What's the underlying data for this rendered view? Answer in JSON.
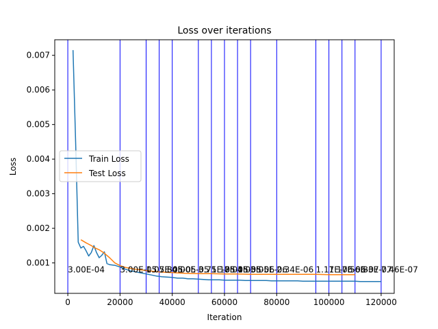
{
  "chart_data": {
    "type": "line",
    "title": "Loss over iterations",
    "xlabel": "Iteration",
    "ylabel": "Loss",
    "xlim": [
      -5000,
      125000
    ],
    "ylim": [
      0.00012,
      0.00745
    ],
    "xticks": [
      0,
      20000,
      40000,
      60000,
      80000,
      100000,
      120000
    ],
    "xtick_labels": [
      "0",
      "20000",
      "40000",
      "60000",
      "80000",
      "100000",
      "120000"
    ],
    "yticks": [
      0.001,
      0.002,
      0.003,
      0.004,
      0.005,
      0.006,
      0.007
    ],
    "ytick_labels": [
      "0.001",
      "0.002",
      "0.003",
      "0.004",
      "0.005",
      "0.006",
      "0.007"
    ],
    "grid": false,
    "legend_position": "center-left",
    "series": [
      {
        "name": "Train Loss",
        "color": "#1f77b4",
        "x": [
          2000,
          3000,
          4000,
          5000,
          6000,
          7000,
          8000,
          9000,
          10000,
          11000,
          12000,
          13000,
          14000,
          15000,
          16000,
          18000,
          20000,
          22000,
          24000,
          26000,
          28000,
          30000,
          32000,
          34000,
          36000,
          38000,
          40000,
          42000,
          44000,
          46000,
          48000,
          50000,
          52000,
          54000,
          56000,
          58000,
          60000,
          62000,
          64000,
          66000,
          68000,
          70000,
          72000,
          74000,
          76000,
          78000,
          80000,
          82000,
          84000,
          86000,
          88000,
          90000,
          92000,
          94000,
          96000,
          98000,
          100000,
          102000,
          104000,
          106000,
          108000,
          110000,
          112000,
          114000,
          116000,
          118000,
          120000
        ],
        "values": [
          0.00715,
          0.0045,
          0.0016,
          0.00143,
          0.00148,
          0.00135,
          0.0012,
          0.0013,
          0.0015,
          0.0013,
          0.00115,
          0.00122,
          0.00132,
          0.00098,
          0.00095,
          0.00093,
          0.00088,
          0.00082,
          0.00077,
          0.00074,
          0.00071,
          0.00068,
          0.00065,
          0.00062,
          0.0006,
          0.00059,
          0.00058,
          0.00056,
          0.00056,
          0.00054,
          0.00054,
          0.00053,
          0.00052,
          0.00051,
          0.00051,
          0.00051,
          0.0005,
          0.0005,
          0.0005,
          0.0005,
          0.00049,
          0.00049,
          0.00049,
          0.00049,
          0.00049,
          0.00048,
          0.00048,
          0.00048,
          0.00048,
          0.00048,
          0.00048,
          0.00047,
          0.00047,
          0.00047,
          0.00047,
          0.00047,
          0.00047,
          0.00047,
          0.00047,
          0.00047,
          0.00047,
          0.00047,
          0.00046,
          0.00046,
          0.00046,
          0.00046,
          0.00046
        ]
      },
      {
        "name": "Test Loss",
        "color": "#ff7f0e",
        "x": [
          5000,
          7000,
          9000,
          10000,
          12000,
          14000,
          16000,
          18000,
          20000,
          22000,
          25000,
          30000,
          35000,
          40000,
          45000,
          50000,
          55000,
          60000,
          65000,
          70000,
          75000,
          80000,
          85000,
          90000,
          95000,
          100000,
          105000,
          110000
        ],
        "values": [
          0.00167,
          0.00158,
          0.0015,
          0.00145,
          0.00138,
          0.00128,
          0.00115,
          0.001,
          0.00092,
          0.00087,
          0.00083,
          0.00078,
          0.00074,
          0.00072,
          0.0007,
          0.00069,
          0.00069,
          0.00068,
          0.00068,
          0.00067,
          0.00067,
          0.00067,
          0.00067,
          0.00067,
          0.00067,
          0.00066,
          0.00066,
          0.00066
        ]
      }
    ],
    "vlines": {
      "color": "#0000ff",
      "x": [
        0,
        20000,
        30000,
        35000,
        40000,
        50000,
        55000,
        60000,
        65000,
        70000,
        80000,
        95000,
        100000,
        105000,
        110000,
        120000
      ]
    },
    "annotations": [
      {
        "x": 0,
        "y": 0.0007,
        "text": "3.00E-04"
      },
      {
        "x": 20000,
        "y": 0.0007,
        "text": "3.00E-05"
      },
      {
        "x": 30000,
        "y": 0.0007,
        "text": "1.07E-05"
      },
      {
        "x": 35000,
        "y": 0.0007,
        "text": "5.80E-05"
      },
      {
        "x": 40000,
        "y": 0.0007,
        "text": "4.00E-05"
      },
      {
        "x": 50000,
        "y": 0.0007,
        "text": "3.75E-05"
      },
      {
        "x": 55000,
        "y": 0.0007,
        "text": "1.18E-05"
      },
      {
        "x": 60000,
        "y": 0.0007,
        "text": "7.01E-05"
      },
      {
        "x": 65000,
        "y": 0.0007,
        "text": "4.05E-06"
      },
      {
        "x": 70000,
        "y": 0.0007,
        "text": "3.05E-06"
      },
      {
        "x": 80000,
        "y": 0.0007,
        "text": "2.34E-06"
      },
      {
        "x": 95000,
        "y": 0.0007,
        "text": "1.17E-06"
      },
      {
        "x": 100000,
        "y": 0.0007,
        "text": "1.17E-06"
      },
      {
        "x": 105000,
        "y": 0.0007,
        "text": "7.56E-07"
      },
      {
        "x": 110000,
        "y": 0.0007,
        "text": "6.83E-07"
      },
      {
        "x": 120000,
        "y": 0.0007,
        "text": "7.46E-07"
      }
    ]
  }
}
